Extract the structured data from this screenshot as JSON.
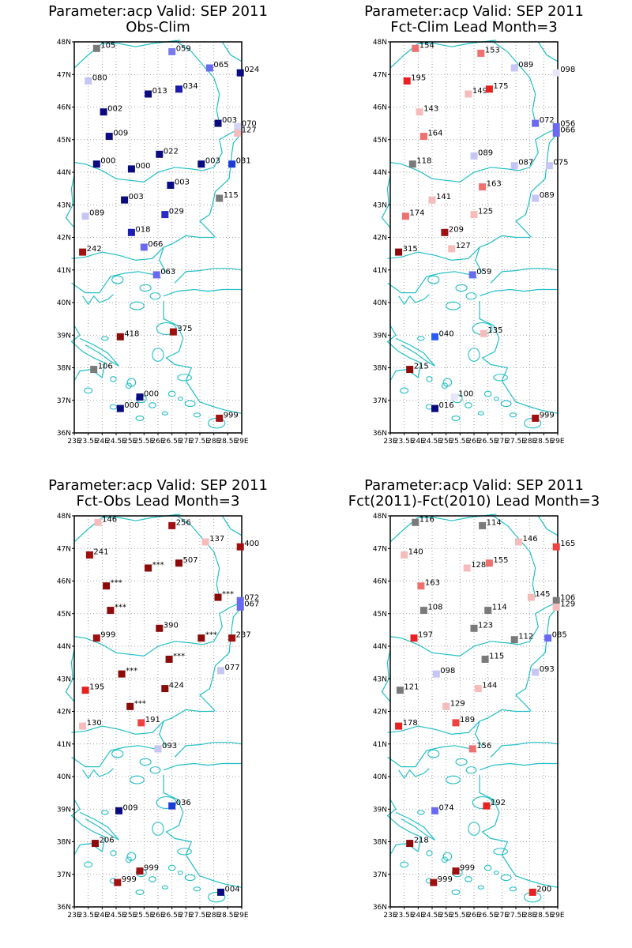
{
  "colors": {
    "coast": "#22bfc6",
    "grid": "#888888",
    "frame": "#000000"
  },
  "axes": {
    "lat_range": [
      36,
      48
    ],
    "lon_range": [
      23,
      29
    ],
    "lat_ticks": [
      "36N",
      "37N",
      "38N",
      "39N",
      "40N",
      "41N",
      "42N",
      "43N",
      "44N",
      "45N",
      "46N",
      "47N",
      "48N"
    ],
    "lon_ticks": [
      "23E",
      "23.5E",
      "24E",
      "24.5E",
      "25E",
      "25.5E",
      "26E",
      "26.5E",
      "27E",
      "27.5E",
      "28E",
      "28.5E",
      "29E"
    ]
  },
  "panels": [
    {
      "title_line1": "Parameter:acp Valid: SEP 2011",
      "title_line2": "Obs-Clim",
      "chart_data": {
        "type": "scatter",
        "points": [
          {
            "lon": 23.8,
            "lat": 47.8,
            "label": "105",
            "color": "#7a7a7a"
          },
          {
            "lon": 26.5,
            "lat": 47.7,
            "label": "059",
            "color": "#7a7aee"
          },
          {
            "lon": 27.85,
            "lat": 47.2,
            "label": "065",
            "color": "#6a6af0"
          },
          {
            "lon": 28.95,
            "lat": 47.05,
            "label": "024",
            "color": "#0b0b80"
          },
          {
            "lon": 23.5,
            "lat": 46.8,
            "label": "080",
            "color": "#c6c6f4"
          },
          {
            "lon": 25.65,
            "lat": 46.4,
            "label": "013",
            "color": "#0b0b80"
          },
          {
            "lon": 26.75,
            "lat": 46.55,
            "label": "034",
            "color": "#1c1ca8"
          },
          {
            "lon": 24.05,
            "lat": 45.85,
            "label": "002",
            "color": "#0b0b80"
          },
          {
            "lon": 28.15,
            "lat": 45.5,
            "label": "003",
            "color": "#0b0b80"
          },
          {
            "lon": 28.85,
            "lat": 45.4,
            "label": "070",
            "color": "#d4d4f4"
          },
          {
            "lon": 28.85,
            "lat": 45.2,
            "label": "127",
            "color": "#f6bcbc"
          },
          {
            "lon": 24.25,
            "lat": 45.1,
            "label": "009",
            "color": "#0b0b80"
          },
          {
            "lon": 23.8,
            "lat": 44.25,
            "label": "000",
            "color": "#0b0b80"
          },
          {
            "lon": 25.05,
            "lat": 44.1,
            "label": "000",
            "color": "#0b0b80"
          },
          {
            "lon": 26.05,
            "lat": 44.55,
            "label": "022",
            "color": "#0b0b80"
          },
          {
            "lon": 27.55,
            "lat": 44.25,
            "label": "003",
            "color": "#0b0b80"
          },
          {
            "lon": 28.65,
            "lat": 44.25,
            "label": "031",
            "color": "#1c3cd8"
          },
          {
            "lon": 26.45,
            "lat": 43.6,
            "label": "003",
            "color": "#0b0b80"
          },
          {
            "lon": 24.8,
            "lat": 43.15,
            "label": "003",
            "color": "#0b0b80"
          },
          {
            "lon": 28.2,
            "lat": 43.2,
            "label": "115",
            "color": "#7a7a7a"
          },
          {
            "lon": 23.4,
            "lat": 42.65,
            "label": "089",
            "color": "#c6c6f4"
          },
          {
            "lon": 26.25,
            "lat": 42.7,
            "label": "029",
            "color": "#2a2ac8"
          },
          {
            "lon": 25.05,
            "lat": 42.15,
            "label": "018",
            "color": "#1c1cb8"
          },
          {
            "lon": 23.3,
            "lat": 41.55,
            "label": "242",
            "color": "#a01010"
          },
          {
            "lon": 25.5,
            "lat": 41.7,
            "label": "066",
            "color": "#6a6af0"
          },
          {
            "lon": 25.95,
            "lat": 40.85,
            "label": "063",
            "color": "#6a6af0"
          },
          {
            "lon": 24.65,
            "lat": 38.95,
            "label": "418",
            "color": "#8b0a0a"
          },
          {
            "lon": 26.55,
            "lat": 39.1,
            "label": "375",
            "color": "#a01010"
          },
          {
            "lon": 23.7,
            "lat": 37.95,
            "label": "106",
            "color": "#7a7a7a"
          },
          {
            "lon": 25.35,
            "lat": 37.1,
            "label": "000",
            "color": "#0b0b80"
          },
          {
            "lon": 24.65,
            "lat": 36.75,
            "label": "000",
            "color": "#0b0b80"
          },
          {
            "lon": 28.2,
            "lat": 36.45,
            "label": "999",
            "color": "#a01010"
          }
        ]
      }
    },
    {
      "title_line1": "Parameter:acp Valid: SEP 2011",
      "title_line2": "Fct-Clim Lead Month=3",
      "chart_data": {
        "type": "scatter",
        "points": [
          {
            "lon": 23.9,
            "lat": 47.8,
            "label": "154",
            "color": "#f07070"
          },
          {
            "lon": 26.25,
            "lat": 47.65,
            "label": "153",
            "color": "#f07070"
          },
          {
            "lon": 27.45,
            "lat": 47.2,
            "label": "089",
            "color": "#c6c6f4"
          },
          {
            "lon": 28.95,
            "lat": 47.05,
            "label": "098",
            "color": "#e6e6f8"
          },
          {
            "lon": 23.6,
            "lat": 46.8,
            "label": "195",
            "color": "#e82020"
          },
          {
            "lon": 25.8,
            "lat": 46.4,
            "label": "149",
            "color": "#f6bcbc"
          },
          {
            "lon": 26.55,
            "lat": 46.55,
            "label": "175",
            "color": "#e82020"
          },
          {
            "lon": 24.05,
            "lat": 45.85,
            "label": "143",
            "color": "#f6bcbc"
          },
          {
            "lon": 28.2,
            "lat": 45.5,
            "label": "072",
            "color": "#6a6af0"
          },
          {
            "lon": 28.95,
            "lat": 45.4,
            "label": "056",
            "color": "#6a6af0"
          },
          {
            "lon": 28.95,
            "lat": 45.2,
            "label": "066",
            "color": "#6a6af0"
          },
          {
            "lon": 24.2,
            "lat": 45.1,
            "label": "164",
            "color": "#f07070"
          },
          {
            "lon": 23.8,
            "lat": 44.25,
            "label": "118",
            "color": "#7a7a7a"
          },
          {
            "lon": 26.0,
            "lat": 44.5,
            "label": "089",
            "color": "#c6c6f4"
          },
          {
            "lon": 27.45,
            "lat": 44.2,
            "label": "087",
            "color": "#c6c6f4"
          },
          {
            "lon": 28.7,
            "lat": 44.2,
            "label": "075",
            "color": "#c6c6f4"
          },
          {
            "lon": 26.3,
            "lat": 43.55,
            "label": "163",
            "color": "#f07070"
          },
          {
            "lon": 24.5,
            "lat": 43.15,
            "label": "141",
            "color": "#f6bcbc"
          },
          {
            "lon": 28.2,
            "lat": 43.2,
            "label": "089",
            "color": "#c6c6f4"
          },
          {
            "lon": 23.55,
            "lat": 42.65,
            "label": "174",
            "color": "#f07070"
          },
          {
            "lon": 26.0,
            "lat": 42.7,
            "label": "125",
            "color": "#f6bcbc"
          },
          {
            "lon": 24.95,
            "lat": 42.15,
            "label": "209",
            "color": "#a01010"
          },
          {
            "lon": 23.3,
            "lat": 41.55,
            "label": "315",
            "color": "#8b0a0a"
          },
          {
            "lon": 25.2,
            "lat": 41.65,
            "label": "127",
            "color": "#f6bcbc"
          },
          {
            "lon": 25.95,
            "lat": 40.85,
            "label": "059",
            "color": "#6a6af0"
          },
          {
            "lon": 24.6,
            "lat": 38.95,
            "label": "040",
            "color": "#2a5af0"
          },
          {
            "lon": 26.35,
            "lat": 39.05,
            "label": "135",
            "color": "#f6bcbc"
          },
          {
            "lon": 23.7,
            "lat": 37.95,
            "label": "215",
            "color": "#8b0a0a"
          },
          {
            "lon": 25.3,
            "lat": 37.1,
            "label": "100",
            "color": "#e6e6f8"
          },
          {
            "lon": 24.6,
            "lat": 36.75,
            "label": "016",
            "color": "#0b0b80"
          },
          {
            "lon": 28.2,
            "lat": 36.45,
            "label": "999",
            "color": "#a01010"
          }
        ]
      }
    },
    {
      "title_line1": "Parameter:acp Valid: SEP 2011",
      "title_line2": "Fct-Obs Lead Month=3",
      "chart_data": {
        "type": "scatter",
        "points": [
          {
            "lon": 23.85,
            "lat": 47.8,
            "label": "146",
            "color": "#f6bcbc"
          },
          {
            "lon": 26.5,
            "lat": 47.7,
            "label": "256",
            "color": "#a01010"
          },
          {
            "lon": 27.7,
            "lat": 47.2,
            "label": "137",
            "color": "#f6bcbc"
          },
          {
            "lon": 28.95,
            "lat": 47.05,
            "label": "400",
            "color": "#a01010"
          },
          {
            "lon": 23.55,
            "lat": 46.8,
            "label": "241",
            "color": "#a01010"
          },
          {
            "lon": 25.65,
            "lat": 46.4,
            "label": "***",
            "color": "#8b0a0a"
          },
          {
            "lon": 26.75,
            "lat": 46.55,
            "label": "507",
            "color": "#8b0a0a"
          },
          {
            "lon": 24.15,
            "lat": 45.85,
            "label": "***",
            "color": "#8b0a0a"
          },
          {
            "lon": 28.15,
            "lat": 45.5,
            "label": "***",
            "color": "#8b0a0a"
          },
          {
            "lon": 28.95,
            "lat": 45.4,
            "label": "072",
            "color": "#6a6af0"
          },
          {
            "lon": 28.95,
            "lat": 45.2,
            "label": "067",
            "color": "#6a6af0"
          },
          {
            "lon": 24.3,
            "lat": 45.1,
            "label": "***",
            "color": "#8b0a0a"
          },
          {
            "lon": 23.8,
            "lat": 44.25,
            "label": "999",
            "color": "#a01010"
          },
          {
            "lon": 26.05,
            "lat": 44.55,
            "label": "390",
            "color": "#8b0a0a"
          },
          {
            "lon": 27.55,
            "lat": 44.25,
            "label": "***",
            "color": "#8b0a0a"
          },
          {
            "lon": 28.65,
            "lat": 44.25,
            "label": "237",
            "color": "#a01010"
          },
          {
            "lon": 26.4,
            "lat": 43.6,
            "label": "***",
            "color": "#8b0a0a"
          },
          {
            "lon": 24.7,
            "lat": 43.15,
            "label": "***",
            "color": "#8b0a0a"
          },
          {
            "lon": 28.25,
            "lat": 43.25,
            "label": "077",
            "color": "#c6c6f4"
          },
          {
            "lon": 23.4,
            "lat": 42.65,
            "label": "195",
            "color": "#e82020"
          },
          {
            "lon": 26.25,
            "lat": 42.7,
            "label": "424",
            "color": "#8b0a0a"
          },
          {
            "lon": 25.0,
            "lat": 42.15,
            "label": "***",
            "color": "#8b0a0a"
          },
          {
            "lon": 23.3,
            "lat": 41.55,
            "label": "130",
            "color": "#f6bcbc"
          },
          {
            "lon": 25.4,
            "lat": 41.65,
            "label": "191",
            "color": "#f04040"
          },
          {
            "lon": 26.0,
            "lat": 40.85,
            "label": "093",
            "color": "#c6c6f4"
          },
          {
            "lon": 24.6,
            "lat": 38.95,
            "label": "009",
            "color": "#0b0b80"
          },
          {
            "lon": 26.5,
            "lat": 39.1,
            "label": "036",
            "color": "#1c3cd8"
          },
          {
            "lon": 23.75,
            "lat": 37.95,
            "label": "206",
            "color": "#8b0a0a"
          },
          {
            "lon": 25.35,
            "lat": 37.1,
            "label": "999",
            "color": "#a01010"
          },
          {
            "lon": 24.55,
            "lat": 36.75,
            "label": "999",
            "color": "#a01010"
          },
          {
            "lon": 28.25,
            "lat": 36.45,
            "label": "004",
            "color": "#0b0b80"
          }
        ]
      }
    },
    {
      "title_line1": "Parameter:acp Valid: SEP 2011",
      "title_line2": "Fct(2011)-Fct(2010) Lead Month=3",
      "chart_data": {
        "type": "scatter",
        "points": [
          {
            "lon": 23.9,
            "lat": 47.8,
            "label": "116",
            "color": "#7a7a7a"
          },
          {
            "lon": 26.3,
            "lat": 47.7,
            "label": "114",
            "color": "#7a7a7a"
          },
          {
            "lon": 27.6,
            "lat": 47.2,
            "label": "146",
            "color": "#f6bcbc"
          },
          {
            "lon": 28.95,
            "lat": 47.05,
            "label": "165",
            "color": "#f04040"
          },
          {
            "lon": 23.5,
            "lat": 46.8,
            "label": "140",
            "color": "#f6bcbc"
          },
          {
            "lon": 25.75,
            "lat": 46.4,
            "label": "128",
            "color": "#f6bcbc"
          },
          {
            "lon": 26.55,
            "lat": 46.55,
            "label": "155",
            "color": "#f07070"
          },
          {
            "lon": 24.1,
            "lat": 45.85,
            "label": "163",
            "color": "#f07070"
          },
          {
            "lon": 28.05,
            "lat": 45.5,
            "label": "145",
            "color": "#f6bcbc"
          },
          {
            "lon": 28.95,
            "lat": 45.4,
            "label": "106",
            "color": "#7a7a7a"
          },
          {
            "lon": 28.95,
            "lat": 45.2,
            "label": "129",
            "color": "#f6bcbc"
          },
          {
            "lon": 24.2,
            "lat": 45.1,
            "label": "108",
            "color": "#7a7a7a"
          },
          {
            "lon": 23.85,
            "lat": 44.25,
            "label": "197",
            "color": "#e82020"
          },
          {
            "lon": 26.0,
            "lat": 44.55,
            "label": "123",
            "color": "#7a7a7a"
          },
          {
            "lon": 26.5,
            "lat": 45.1,
            "label": "114",
            "color": "#7a7a7a"
          },
          {
            "lon": 27.45,
            "lat": 44.2,
            "label": "112",
            "color": "#7a7a7a"
          },
          {
            "lon": 28.65,
            "lat": 44.25,
            "label": "085",
            "color": "#6a6af0"
          },
          {
            "lon": 26.4,
            "lat": 43.6,
            "label": "115",
            "color": "#7a7a7a"
          },
          {
            "lon": 24.65,
            "lat": 43.15,
            "label": "098",
            "color": "#c6c6f4"
          },
          {
            "lon": 28.2,
            "lat": 43.2,
            "label": "093",
            "color": "#c6c6f4"
          },
          {
            "lon": 23.35,
            "lat": 42.65,
            "label": "121",
            "color": "#7a7a7a"
          },
          {
            "lon": 26.15,
            "lat": 42.7,
            "label": "144",
            "color": "#f6bcbc"
          },
          {
            "lon": 25.0,
            "lat": 42.15,
            "label": "129",
            "color": "#f6bcbc"
          },
          {
            "lon": 23.3,
            "lat": 41.55,
            "label": "178",
            "color": "#e82020"
          },
          {
            "lon": 25.35,
            "lat": 41.65,
            "label": "189",
            "color": "#f04040"
          },
          {
            "lon": 25.95,
            "lat": 40.85,
            "label": "156",
            "color": "#f07070"
          },
          {
            "lon": 24.6,
            "lat": 38.95,
            "label": "074",
            "color": "#6a6af0"
          },
          {
            "lon": 26.45,
            "lat": 39.1,
            "label": "192",
            "color": "#e82020"
          },
          {
            "lon": 23.7,
            "lat": 37.95,
            "label": "218",
            "color": "#8b0a0a"
          },
          {
            "lon": 25.35,
            "lat": 37.1,
            "label": "999",
            "color": "#a01010"
          },
          {
            "lon": 24.55,
            "lat": 36.75,
            "label": "999",
            "color": "#a01010"
          },
          {
            "lon": 28.1,
            "lat": 36.45,
            "label": "200",
            "color": "#e82020"
          }
        ]
      }
    }
  ]
}
